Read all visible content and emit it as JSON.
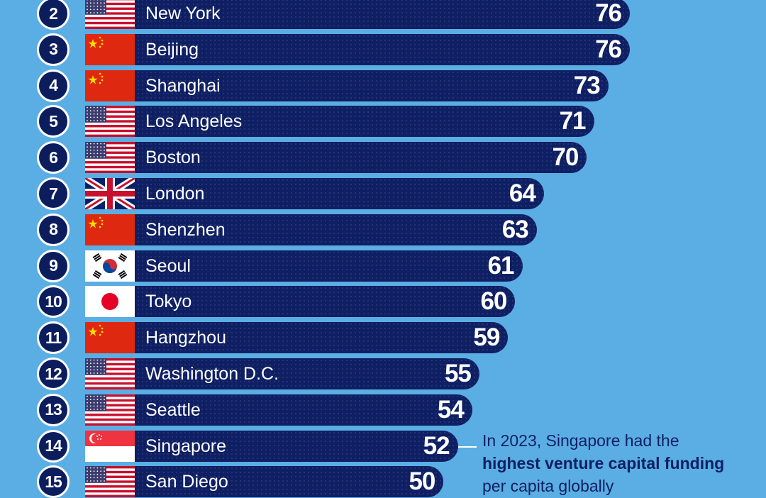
{
  "chart_data": {
    "type": "bar",
    "ranks": [
      "2",
      "3",
      "4",
      "5",
      "6",
      "7",
      "8",
      "9",
      "10",
      "11",
      "12",
      "13",
      "14",
      "15"
    ],
    "categories": [
      "New York",
      "Beijing",
      "Shanghai",
      "Los Angeles",
      "Boston",
      "London",
      "Shenzhen",
      "Seoul",
      "Tokyo",
      "Hangzhou",
      "Washington D.C.",
      "Seattle",
      "Singapore",
      "San Diego"
    ],
    "flags": [
      "us-flag-icon",
      "china-flag-icon",
      "china-flag-icon",
      "us-flag-icon",
      "us-flag-icon",
      "uk-flag-icon",
      "china-flag-icon",
      "south-korea-flag-icon",
      "japan-flag-icon",
      "china-flag-icon",
      "us-flag-icon",
      "us-flag-icon",
      "singapore-flag-icon",
      "us-flag-icon"
    ],
    "values": [
      76,
      76,
      73,
      71,
      70,
      64,
      63,
      61,
      60,
      59,
      55,
      54,
      52,
      50
    ],
    "title": "",
    "xlabel": "",
    "ylabel": ""
  },
  "annotation": {
    "line1": "In 2023, Singapore had the",
    "line2": "highest venture capital funding",
    "line3": "per capita globally"
  },
  "colors": {
    "background": "#5aaee3",
    "bar": "#0f1f63",
    "text": "#ffffff",
    "annotation_text": "#0f1f63"
  }
}
